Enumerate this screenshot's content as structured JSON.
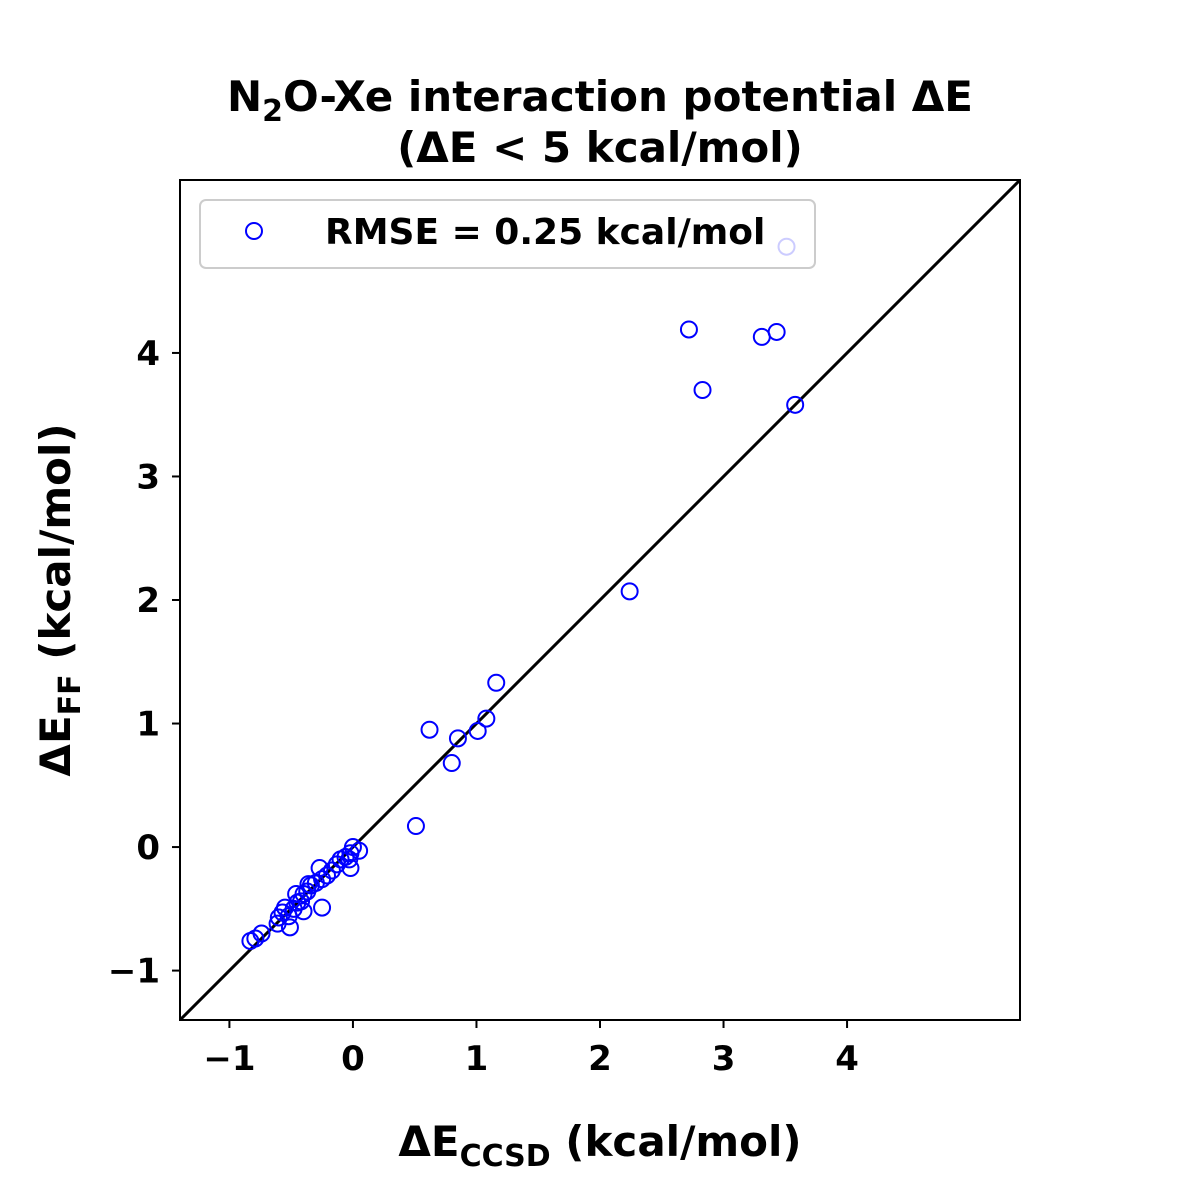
{
  "chart_data": {
    "type": "scatter",
    "title_line1_prefix": "N",
    "title_line1_sub": "2",
    "title_line1_suffix": "O-Xe interaction potential ΔE",
    "title_line2": "(ΔE < 5 kcal/mol)",
    "xlabel_main": "ΔE",
    "xlabel_sub": "CCSD",
    "xlabel_unit": " (kcal/mol)",
    "ylabel_main": "ΔE",
    "ylabel_sub": "FF",
    "ylabel_unit": " (kcal/mol)",
    "xlim": [
      -1.4,
      5.4
    ],
    "ylim": [
      -1.4,
      5.4
    ],
    "xticks": [
      -1,
      0,
      1,
      2,
      3,
      4
    ],
    "yticks": [
      -1,
      0,
      1,
      2,
      3,
      4
    ],
    "xtick_labels": [
      "−1",
      "0",
      "1",
      "2",
      "3",
      "4"
    ],
    "ytick_labels": [
      "−1",
      "0",
      "1",
      "2",
      "3",
      "4"
    ],
    "legend_label": "RMSE = 0.25 kcal/mol",
    "legend_position": "top-left",
    "marker_color": "#0000ff",
    "line_color": "#000000",
    "reference_line": "y = x",
    "points": [
      {
        "x": 3.51,
        "y": 4.86
      },
      {
        "x": 2.72,
        "y": 4.19
      },
      {
        "x": 3.31,
        "y": 4.13
      },
      {
        "x": 3.43,
        "y": 4.17
      },
      {
        "x": 2.83,
        "y": 3.7
      },
      {
        "x": 3.58,
        "y": 3.58
      },
      {
        "x": 2.24,
        "y": 2.07
      },
      {
        "x": 1.16,
        "y": 1.33
      },
      {
        "x": 1.08,
        "y": 1.04
      },
      {
        "x": 0.62,
        "y": 0.95
      },
      {
        "x": 0.85,
        "y": 0.88
      },
      {
        "x": 1.01,
        "y": 0.94
      },
      {
        "x": 0.8,
        "y": 0.68
      },
      {
        "x": 0.51,
        "y": 0.17
      },
      {
        "x": 0.05,
        "y": -0.03
      },
      {
        "x": 0.0,
        "y": 0.0
      },
      {
        "x": -0.02,
        "y": -0.05
      },
      {
        "x": -0.03,
        "y": -0.1
      },
      {
        "x": -0.02,
        "y": -0.17
      },
      {
        "x": -0.06,
        "y": -0.08
      },
      {
        "x": -0.1,
        "y": -0.1
      },
      {
        "x": -0.13,
        "y": -0.14
      },
      {
        "x": -0.17,
        "y": -0.19
      },
      {
        "x": -0.21,
        "y": -0.23
      },
      {
        "x": -0.25,
        "y": -0.26
      },
      {
        "x": -0.27,
        "y": -0.17
      },
      {
        "x": -0.3,
        "y": -0.29
      },
      {
        "x": -0.34,
        "y": -0.31
      },
      {
        "x": -0.37,
        "y": -0.36
      },
      {
        "x": -0.36,
        "y": -0.3
      },
      {
        "x": -0.4,
        "y": -0.38
      },
      {
        "x": -0.42,
        "y": -0.44
      },
      {
        "x": -0.45,
        "y": -0.45
      },
      {
        "x": -0.46,
        "y": -0.38
      },
      {
        "x": -0.4,
        "y": -0.52
      },
      {
        "x": -0.48,
        "y": -0.5
      },
      {
        "x": -0.52,
        "y": -0.56
      },
      {
        "x": -0.55,
        "y": -0.49
      },
      {
        "x": -0.57,
        "y": -0.53
      },
      {
        "x": -0.6,
        "y": -0.57
      },
      {
        "x": -0.61,
        "y": -0.62
      },
      {
        "x": -0.51,
        "y": -0.65
      },
      {
        "x": -0.25,
        "y": -0.49
      },
      {
        "x": -0.74,
        "y": -0.7
      },
      {
        "x": -0.79,
        "y": -0.74
      },
      {
        "x": -0.83,
        "y": -0.76
      }
    ]
  }
}
